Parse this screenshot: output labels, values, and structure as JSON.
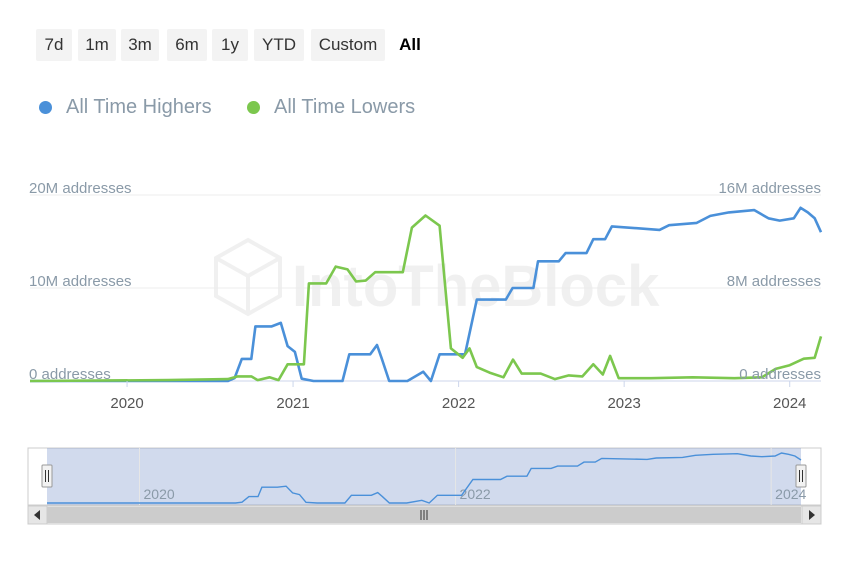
{
  "range_selector": {
    "buttons": [
      {
        "label": "7d",
        "name": "range-7d-button"
      },
      {
        "label": "1m",
        "name": "range-1m-button"
      },
      {
        "label": "3m",
        "name": "range-3m-button"
      },
      {
        "label": "6m",
        "name": "range-6m-button"
      },
      {
        "label": "1y",
        "name": "range-1y-button"
      },
      {
        "label": "YTD",
        "name": "range-ytd-button"
      },
      {
        "label": "Custom",
        "name": "range-custom-button"
      },
      {
        "label": "All",
        "name": "range-all-button"
      }
    ],
    "active": "All"
  },
  "legend": [
    {
      "label": "All Time Highers",
      "color": "#4a90d9"
    },
    {
      "label": "All Time Lowers",
      "color": "#7cc74e"
    }
  ],
  "watermark": "IntoTheBlock",
  "chart_data": {
    "type": "line",
    "x_unit": "date",
    "x_range": [
      "2019-06-01",
      "2024-03-10"
    ],
    "x_ticks": [
      "2020",
      "2021",
      "2022",
      "2023",
      "2024"
    ],
    "left_axis": {
      "ticks": [
        "0 addresses",
        "10M addresses",
        "20M addresses"
      ],
      "range": [
        0,
        20000000
      ]
    },
    "right_axis": {
      "ticks": [
        "0 addresses",
        "8M addresses",
        "16M addresses"
      ],
      "range": [
        0,
        16000000
      ]
    },
    "grid": true,
    "legend_position": "top-left",
    "series": [
      {
        "name": "All Time Highers",
        "color": "#4a90d9",
        "axis": "right",
        "points": [
          [
            "2019-06-01",
            0
          ],
          [
            "2020-08-10",
            0
          ],
          [
            "2020-08-25",
            250000
          ],
          [
            "2020-09-10",
            1900000
          ],
          [
            "2020-10-01",
            1900000
          ],
          [
            "2020-10-10",
            4700000
          ],
          [
            "2020-11-15",
            4700000
          ],
          [
            "2020-12-05",
            5000000
          ],
          [
            "2020-12-20",
            3000000
          ],
          [
            "2021-01-05",
            2500000
          ],
          [
            "2021-01-20",
            200000
          ],
          [
            "2021-02-15",
            0
          ],
          [
            "2021-04-20",
            0
          ],
          [
            "2021-05-05",
            2300000
          ],
          [
            "2021-06-20",
            2300000
          ],
          [
            "2021-07-05",
            3100000
          ],
          [
            "2021-07-15",
            2000000
          ],
          [
            "2021-08-01",
            0
          ],
          [
            "2021-09-10",
            0
          ],
          [
            "2021-10-15",
            800000
          ],
          [
            "2021-11-01",
            0
          ],
          [
            "2021-11-20",
            2300000
          ],
          [
            "2021-12-20",
            2300000
          ],
          [
            "2022-01-15",
            2300000
          ],
          [
            "2022-02-10",
            7000000
          ],
          [
            "2022-04-15",
            7000000
          ],
          [
            "2022-04-30",
            8000000
          ],
          [
            "2022-06-15",
            8000000
          ],
          [
            "2022-06-25",
            10300000
          ],
          [
            "2022-08-10",
            10300000
          ],
          [
            "2022-08-25",
            11000000
          ],
          [
            "2022-10-10",
            11000000
          ],
          [
            "2022-10-25",
            12200000
          ],
          [
            "2022-11-20",
            12200000
          ],
          [
            "2022-12-05",
            13300000
          ],
          [
            "2023-03-20",
            13000000
          ],
          [
            "2023-04-10",
            13400000
          ],
          [
            "2023-06-10",
            13600000
          ],
          [
            "2023-07-10",
            14200000
          ],
          [
            "2023-08-20",
            14500000
          ],
          [
            "2023-10-15",
            14700000
          ],
          [
            "2023-11-15",
            14000000
          ],
          [
            "2023-12-10",
            13800000
          ],
          [
            "2024-01-10",
            14000000
          ],
          [
            "2024-01-25",
            14900000
          ],
          [
            "2024-02-10",
            14500000
          ],
          [
            "2024-02-25",
            14000000
          ],
          [
            "2024-03-10",
            12800000
          ]
        ]
      },
      {
        "name": "All Time Lowers",
        "color": "#7cc74e",
        "axis": "left",
        "points": [
          [
            "2019-06-01",
            0
          ],
          [
            "2020-04-01",
            100000
          ],
          [
            "2020-08-10",
            200000
          ],
          [
            "2020-09-01",
            500000
          ],
          [
            "2020-10-01",
            500000
          ],
          [
            "2020-10-15",
            100000
          ],
          [
            "2020-11-10",
            400000
          ],
          [
            "2020-11-30",
            100000
          ],
          [
            "2020-12-20",
            1800000
          ],
          [
            "2021-01-25",
            1800000
          ],
          [
            "2021-02-05",
            10500000
          ],
          [
            "2021-03-15",
            10500000
          ],
          [
            "2021-04-05",
            12300000
          ],
          [
            "2021-05-01",
            12000000
          ],
          [
            "2021-05-20",
            10700000
          ],
          [
            "2021-06-10",
            10800000
          ],
          [
            "2021-07-01",
            11700000
          ],
          [
            "2021-08-31",
            11700000
          ],
          [
            "2021-09-20",
            16500000
          ],
          [
            "2021-10-20",
            17800000
          ],
          [
            "2021-11-20",
            16700000
          ],
          [
            "2021-12-15",
            3500000
          ],
          [
            "2022-01-10",
            2500000
          ],
          [
            "2022-01-25",
            3500000
          ],
          [
            "2022-02-10",
            1500000
          ],
          [
            "2022-03-10",
            900000
          ],
          [
            "2022-04-10",
            400000
          ],
          [
            "2022-05-01",
            2300000
          ],
          [
            "2022-05-20",
            800000
          ],
          [
            "2022-07-01",
            800000
          ],
          [
            "2022-08-01",
            200000
          ],
          [
            "2022-09-01",
            600000
          ],
          [
            "2022-10-01",
            500000
          ],
          [
            "2022-10-25",
            1800000
          ],
          [
            "2022-11-15",
            700000
          ],
          [
            "2022-12-01",
            2700000
          ],
          [
            "2022-12-20",
            300000
          ],
          [
            "2023-03-01",
            300000
          ],
          [
            "2023-06-01",
            400000
          ],
          [
            "2023-09-01",
            300000
          ],
          [
            "2023-11-01",
            400000
          ],
          [
            "2023-12-01",
            1300000
          ],
          [
            "2024-01-01",
            1700000
          ],
          [
            "2024-02-01",
            2400000
          ],
          [
            "2024-02-25",
            2500000
          ],
          [
            "2024-03-10",
            4800000
          ]
        ]
      }
    ],
    "navigator": {
      "x_ticks": [
        "2020",
        "2022",
        "2024"
      ],
      "selection": [
        "2019-06-01",
        "2024-03-10"
      ]
    }
  }
}
